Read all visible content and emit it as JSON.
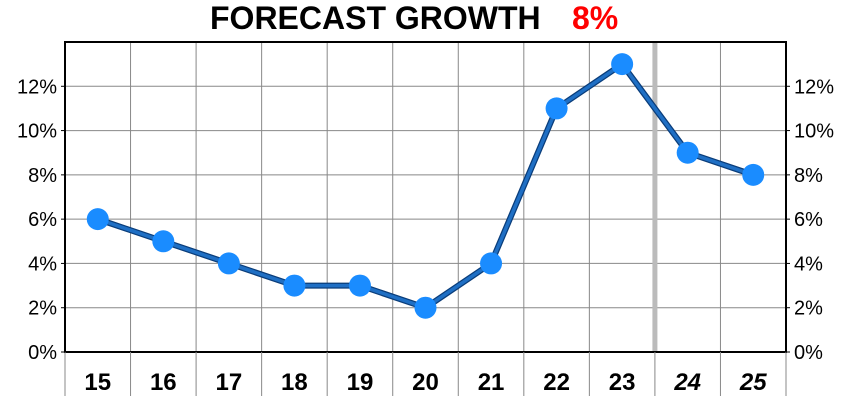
{
  "colors": {
    "line": "#1f6fc4",
    "marker": "#1a8cff",
    "title_value": "#ff0000",
    "grid": "#888888",
    "forecast_divider": "#bbbbbb"
  },
  "chart_data": {
    "type": "line",
    "title": "FORECAST GROWTH",
    "title_value": "8%",
    "x": [
      "15",
      "16",
      "17",
      "18",
      "19",
      "20",
      "21",
      "22",
      "23",
      "24",
      "25"
    ],
    "forecast_from_index": 9,
    "series": [
      {
        "values": [
          6,
          5,
          4,
          3,
          3,
          2,
          4,
          11,
          13,
          9,
          8
        ]
      }
    ],
    "ylim": [
      0,
      14
    ],
    "yticks": [
      0,
      2,
      4,
      6,
      8,
      10,
      12
    ],
    "ytick_labels": [
      "0%",
      "2%",
      "4%",
      "6%",
      "8%",
      "10%",
      "12%"
    ],
    "y_axis_both_sides": true,
    "grid": true,
    "legend": "none"
  }
}
